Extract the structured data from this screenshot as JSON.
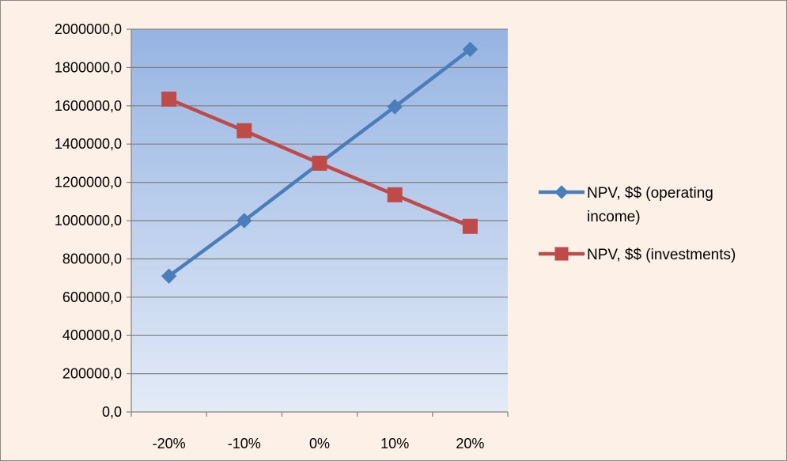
{
  "chart_data": {
    "type": "line",
    "categories": [
      "-20%",
      "-10%",
      "0%",
      "10%",
      "20%"
    ],
    "series": [
      {
        "name": "NPV, $$ (operating income)",
        "name_lines": [
          "NPV, $$ (operating",
          "income)"
        ],
        "color": "#4a7ebb",
        "marker": "diamond",
        "values": [
          710000,
          1000000,
          1300000,
          1595000,
          1895000
        ]
      },
      {
        "name": "NPV, $$ (investments)",
        "name_lines": [
          "NPV, $$ (investments)"
        ],
        "color": "#be4b48",
        "marker": "square",
        "values": [
          1635000,
          1470000,
          1300000,
          1135000,
          970000
        ]
      }
    ],
    "ylim": [
      0,
      2000000
    ],
    "yticks": [
      0,
      200000,
      400000,
      600000,
      800000,
      1000000,
      1200000,
      1400000,
      1600000,
      1800000,
      2000000
    ],
    "ytick_labels": [
      "0,0",
      "200000,0",
      "400000,0",
      "600000,0",
      "800000,0",
      "1000000,0",
      "1200000,0",
      "1400000,0",
      "1600000,0",
      "1800000,0",
      "2000000,0"
    ],
    "grid": true,
    "legend_position": "right",
    "plot_gradient": [
      "#96b4e2",
      "#e3ebf7"
    ]
  }
}
